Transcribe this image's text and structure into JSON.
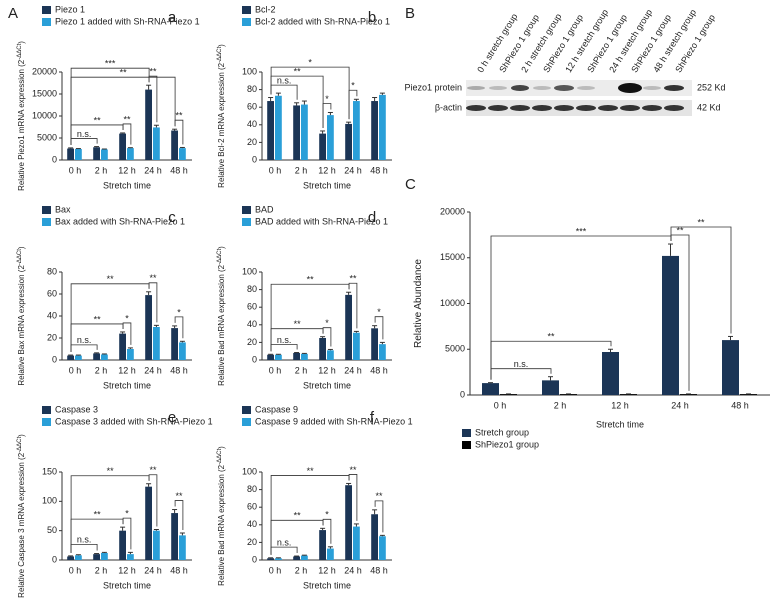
{
  "figure_labels": {
    "A": "A",
    "B": "B",
    "C": "C"
  },
  "blot": {
    "column_labels": [
      "0 h stretch group",
      "ShPiezo 1 group",
      "2 h stretch group",
      "ShPiezo 1 group",
      "12 h stretch group",
      "ShPiezo 1 group",
      "24 h stretch group",
      "ShPiezo 1 group",
      "48 h stretch group",
      "ShPiezo 1 group"
    ],
    "row_labels": [
      "Piezo1 protein",
      "β-actin"
    ],
    "sizes": [
      "252 Kd",
      "42 Kd"
    ]
  },
  "chart_data": [
    {
      "type": "bar",
      "panel_label": "a",
      "x_label": "Stretch time",
      "y_label": [
        "Relative Piezo1 mRNA expression (2",
        "-ΔΔCt",
        ")"
      ],
      "categories": [
        "0 h",
        "2 h",
        "12 h",
        "24 h",
        "48 h"
      ],
      "series": [
        {
          "name": "Piezo 1",
          "color": "#1b3556",
          "values": [
            2600,
            2900,
            6000,
            16000,
            6700
          ],
          "errors": [
            150,
            150,
            150,
            1000,
            300
          ]
        },
        {
          "name": "Piezo 1 added with Sh-RNA-Piezo 1",
          "color": "#2a9fd8",
          "values": [
            2500,
            2400,
            2700,
            7400,
            2700
          ],
          "errors": [
            100,
            100,
            100,
            500,
            150
          ]
        }
      ],
      "ylim": [
        0,
        20000
      ],
      "yticks": [
        0,
        5000,
        10000,
        15000,
        20000
      ],
      "annotations": [
        {
          "text": "n.s.",
          "from": "0 h",
          "to": "2 h"
        },
        {
          "text": "**",
          "from": "0 h",
          "to": "12 h"
        },
        {
          "text": "**",
          "from": "0 h",
          "to": "48 h"
        },
        {
          "text": "***",
          "from": "0 h",
          "to": "24 h"
        },
        {
          "text": "**",
          "from": "12 h",
          "to": "12 h"
        },
        {
          "text": "**",
          "from": "24 h",
          "to": "24 h"
        },
        {
          "text": "**",
          "from": "48 h",
          "to": "48 h"
        }
      ]
    },
    {
      "type": "bar",
      "panel_label": "b",
      "x_label": "Stretch time",
      "y_label": [
        "Relative Bcl-2 mRNA expression (2",
        "-ΔΔCt",
        ")"
      ],
      "categories": [
        "0 h",
        "2 h",
        "12 h",
        "24 h",
        "48 h"
      ],
      "series": [
        {
          "name": "Bcl-2",
          "color": "#1b3556",
          "values": [
            67,
            62,
            30,
            41,
            67
          ],
          "errors": [
            4,
            3,
            3,
            2,
            4
          ]
        },
        {
          "name": "Bcl-2 added with Sh-RNA-Piezo 1",
          "color": "#2a9fd8",
          "values": [
            73,
            63,
            51,
            67,
            74
          ],
          "errors": [
            3,
            4,
            3,
            2,
            2
          ]
        }
      ],
      "ylim": [
        0,
        100
      ],
      "yticks": [
        0,
        20,
        40,
        60,
        80,
        100
      ],
      "annotations": [
        {
          "text": "n.s.",
          "from": "0 h",
          "to": "2 h"
        },
        {
          "text": "**",
          "from": "0 h",
          "to": "12 h"
        },
        {
          "text": "*",
          "from": "0 h",
          "to": "24 h"
        },
        {
          "text": "*",
          "from": "12 h",
          "to": "12 h"
        },
        {
          "text": "*",
          "from": "24 h",
          "to": "24 h"
        }
      ]
    },
    {
      "type": "bar",
      "panel_label": "c",
      "x_label": "Stretch time",
      "y_label": [
        "Relative Bax mRNA expression (2",
        "-ΔΔCt",
        ")"
      ],
      "categories": [
        "0 h",
        "2 h",
        "12 h",
        "24 h",
        "48 h"
      ],
      "series": [
        {
          "name": "Bax",
          "color": "#1b3556",
          "values": [
            4,
            6,
            24,
            59,
            29
          ],
          "errors": [
            0.5,
            0.5,
            1.5,
            3,
            2
          ]
        },
        {
          "name": "Bax added with Sh-RNA-Piezo 1",
          "color": "#2a9fd8",
          "values": [
            4,
            5,
            10,
            30,
            16
          ],
          "errors": [
            0.5,
            0.5,
            1,
            1.5,
            1
          ]
        }
      ],
      "ylim": [
        0,
        80
      ],
      "yticks": [
        0,
        20,
        40,
        60,
        80
      ],
      "annotations": [
        {
          "text": "n.s.",
          "from": "0 h",
          "to": "2 h"
        },
        {
          "text": "**",
          "from": "0 h",
          "to": "12 h"
        },
        {
          "text": "**",
          "from": "0 h",
          "to": "24 h"
        },
        {
          "text": "*",
          "from": "12 h",
          "to": "12 h"
        },
        {
          "text": "**",
          "from": "24 h",
          "to": "24 h"
        },
        {
          "text": "*",
          "from": "48 h",
          "to": "48 h"
        }
      ]
    },
    {
      "type": "bar",
      "panel_label": "d",
      "x_label": "Stretch time",
      "y_label": [
        "Relative Bad mRNA expression (2",
        "-ΔΔCt",
        ")"
      ],
      "categories": [
        "0 h",
        "2 h",
        "12 h",
        "24 h",
        "48 h"
      ],
      "series": [
        {
          "name": "BAD",
          "color": "#1b3556",
          "values": [
            6,
            8,
            25,
            74,
            36
          ],
          "errors": [
            0.5,
            0.5,
            1.5,
            3,
            3
          ]
        },
        {
          "name": "BAD added with Sh-RNA-Piezo 1",
          "color": "#2a9fd8",
          "values": [
            6,
            7,
            11,
            31,
            18
          ],
          "errors": [
            0.5,
            0.5,
            1,
            1.5,
            2
          ]
        }
      ],
      "ylim": [
        0,
        100
      ],
      "yticks": [
        0,
        20,
        40,
        60,
        80,
        100
      ],
      "annotations": [
        {
          "text": "n.s.",
          "from": "0 h",
          "to": "2 h"
        },
        {
          "text": "**",
          "from": "0 h",
          "to": "12 h"
        },
        {
          "text": "**",
          "from": "0 h",
          "to": "24 h"
        },
        {
          "text": "*",
          "from": "12 h",
          "to": "12 h"
        },
        {
          "text": "**",
          "from": "24 h",
          "to": "24 h"
        },
        {
          "text": "*",
          "from": "48 h",
          "to": "48 h"
        }
      ]
    },
    {
      "type": "bar",
      "panel_label": "e",
      "x_label": "Stretch time",
      "y_label": [
        "Relative Caspase 3 mRNA expression (2",
        "-ΔΔCt",
        ")"
      ],
      "categories": [
        "0 h",
        "2 h",
        "12 h",
        "24 h",
        "48 h"
      ],
      "series": [
        {
          "name": "Caspase 3",
          "color": "#1b3556",
          "values": [
            6,
            10,
            50,
            125,
            80
          ],
          "errors": [
            1,
            1,
            6,
            5,
            6
          ]
        },
        {
          "name": "Caspase 3 added with Sh-RNA-Piezo 1",
          "color": "#2a9fd8",
          "values": [
            8,
            12,
            10,
            50,
            42
          ],
          "errors": [
            1,
            1,
            3,
            2,
            4
          ]
        }
      ],
      "ylim": [
        0,
        150
      ],
      "yticks": [
        0,
        50,
        100,
        150
      ],
      "annotations": [
        {
          "text": "n.s.",
          "from": "0 h",
          "to": "2 h"
        },
        {
          "text": "**",
          "from": "0 h",
          "to": "12 h"
        },
        {
          "text": "**",
          "from": "0 h",
          "to": "24 h"
        },
        {
          "text": "*",
          "from": "12 h",
          "to": "12 h"
        },
        {
          "text": "**",
          "from": "24 h",
          "to": "24 h"
        },
        {
          "text": "**",
          "from": "48 h",
          "to": "48 h"
        }
      ]
    },
    {
      "type": "bar",
      "panel_label": "f",
      "x_label": "Stretch time",
      "y_label": [
        "Relative Bad mRNA expression (2",
        "-ΔΔCt",
        ")"
      ],
      "categories": [
        "0 h",
        "2 h",
        "12 h",
        "24 h",
        "48 h"
      ],
      "series": [
        {
          "name": "Caspase 9",
          "color": "#1b3556",
          "values": [
            2,
            4,
            34,
            85,
            52
          ],
          "errors": [
            0.5,
            0.5,
            2,
            2,
            5
          ]
        },
        {
          "name": "Caspase 9 added with Sh-RNA-Piezo 1",
          "color": "#2a9fd8",
          "values": [
            2,
            5,
            13,
            38,
            27
          ],
          "errors": [
            0.5,
            0.5,
            2,
            3,
            1
          ]
        }
      ],
      "ylim": [
        0,
        100
      ],
      "yticks": [
        0,
        20,
        40,
        60,
        80,
        100
      ],
      "annotations": [
        {
          "text": "n.s.",
          "from": "0 h",
          "to": "2 h"
        },
        {
          "text": "**",
          "from": "0 h",
          "to": "12 h"
        },
        {
          "text": "**",
          "from": "0 h",
          "to": "24 h"
        },
        {
          "text": "*",
          "from": "12 h",
          "to": "12 h"
        },
        {
          "text": "**",
          "from": "24 h",
          "to": "24 h"
        },
        {
          "text": "**",
          "from": "48 h",
          "to": "48 h"
        }
      ]
    },
    {
      "type": "bar",
      "x_label": "Stretch time",
      "y_label": [
        "Relative Abundance"
      ],
      "categories": [
        "0 h",
        "2 h",
        "12 h",
        "24 h",
        "48 h"
      ],
      "series": [
        {
          "name": "Stretch group",
          "color": "#1b3556",
          "values": [
            1300,
            1600,
            4700,
            15200,
            6000
          ],
          "errors": [
            50,
            400,
            300,
            1300,
            400
          ]
        },
        {
          "name": "ShPiezo1 group",
          "color": "#000000",
          "values": [
            100,
            100,
            100,
            100,
            100
          ],
          "errors": [
            20,
            20,
            20,
            20,
            20
          ]
        }
      ],
      "ylim": [
        0,
        20000
      ],
      "yticks": [
        0,
        5000,
        10000,
        15000,
        20000
      ],
      "annotations": [
        {
          "text": "n.s.",
          "from": "0 h",
          "to": "2 h"
        },
        {
          "text": "**",
          "from": "0 h",
          "to": "12 h"
        },
        {
          "text": "***",
          "from": "0 h",
          "to": "24 h"
        },
        {
          "text": "**",
          "from": "24 h",
          "to": "24 h"
        },
        {
          "text": "**",
          "from": "24 h",
          "to": "48 h"
        }
      ]
    }
  ]
}
